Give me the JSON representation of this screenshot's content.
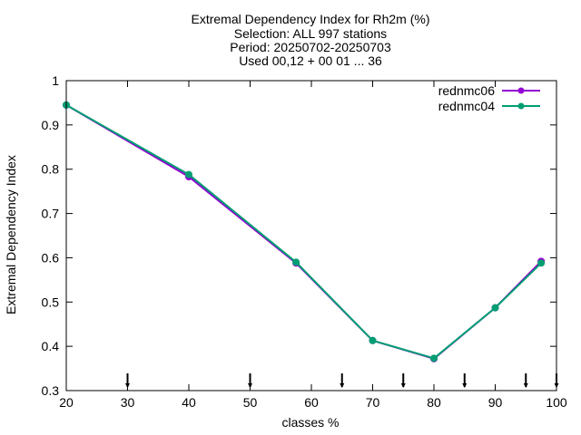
{
  "chart_data": {
    "type": "line",
    "title_lines": [
      "Extremal Dependency Index  for Rh2m (%)",
      "Selection: ALL    997 stations",
      "Period: 20250702-20250703",
      "Used 00,12 + 00 01 ... 36"
    ],
    "xlabel": "classes %",
    "ylabel": "Extremal Dependency Index",
    "xlim": [
      20,
      100
    ],
    "ylim": [
      0.3,
      1
    ],
    "xticks": [
      20,
      30,
      40,
      50,
      60,
      70,
      80,
      90,
      100
    ],
    "yticks": [
      0.3,
      0.4,
      0.5,
      0.6,
      0.7,
      0.8,
      0.9,
      1
    ],
    "ytick_labels": [
      "0.3",
      "0.4",
      "0.5",
      "0.6",
      "0.7",
      "0.8",
      "0.9",
      "1"
    ],
    "threshold_markers": [
      30,
      50,
      65,
      75,
      85,
      95,
      100
    ],
    "legend_position": "top-right",
    "series": [
      {
        "name": "rednmc06",
        "color": "#9400d3",
        "x": [
          20,
          40,
          57.5,
          70,
          80,
          90,
          97.5
        ],
        "y": [
          0.945,
          0.783,
          0.588,
          0.413,
          0.372,
          0.487,
          0.592
        ]
      },
      {
        "name": "rednmc04",
        "color": "#009e73",
        "x": [
          20,
          40,
          57.5,
          70,
          80,
          90,
          97.5
        ],
        "y": [
          0.945,
          0.788,
          0.59,
          0.413,
          0.373,
          0.487,
          0.588
        ]
      }
    ]
  }
}
